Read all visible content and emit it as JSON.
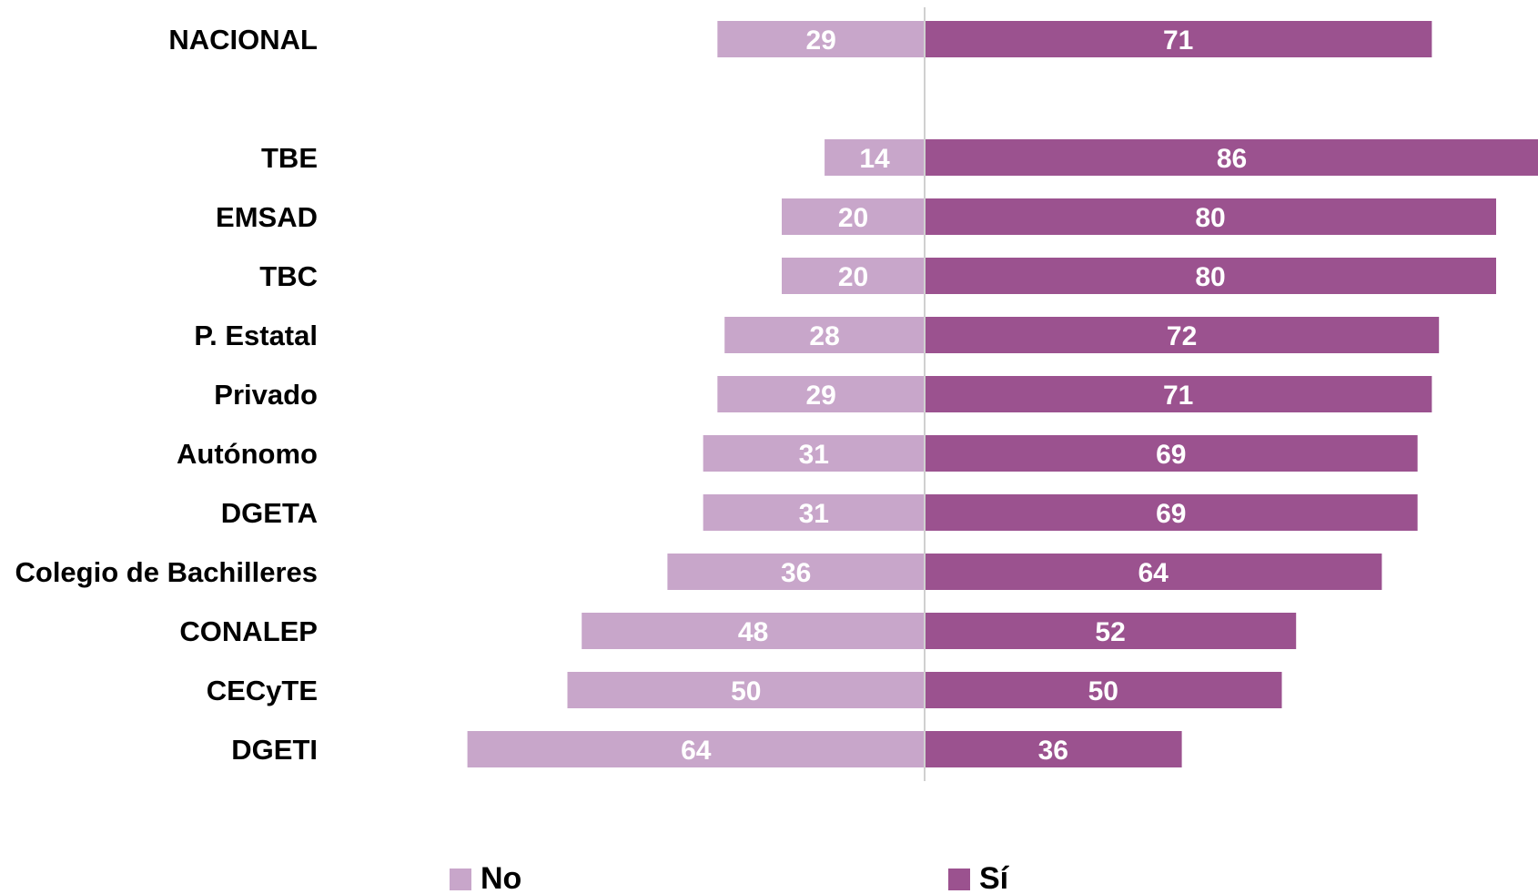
{
  "chart_data": {
    "type": "bar",
    "orientation": "horizontal-diverging",
    "categories": [
      "NACIONAL",
      "TBE",
      "EMSAD",
      "TBC",
      "P. Estatal",
      "Privado",
      "Autónomo",
      "DGETA",
      "Colegio de Bachilleres",
      "CONALEP",
      "CECyTE",
      "DGETI"
    ],
    "series": [
      {
        "name": "No",
        "color": "#c8a6ca",
        "values": [
          29,
          14,
          20,
          20,
          28,
          29,
          31,
          31,
          36,
          48,
          50,
          64
        ]
      },
      {
        "name": "Sí",
        "color": "#9b528f",
        "values": [
          71,
          86,
          80,
          80,
          72,
          71,
          69,
          69,
          64,
          52,
          50,
          36
        ]
      }
    ],
    "title": "",
    "xlabel": "",
    "ylabel": "",
    "grid": false,
    "legend": "bottom-center",
    "divider_color": "#d0d0d0"
  }
}
